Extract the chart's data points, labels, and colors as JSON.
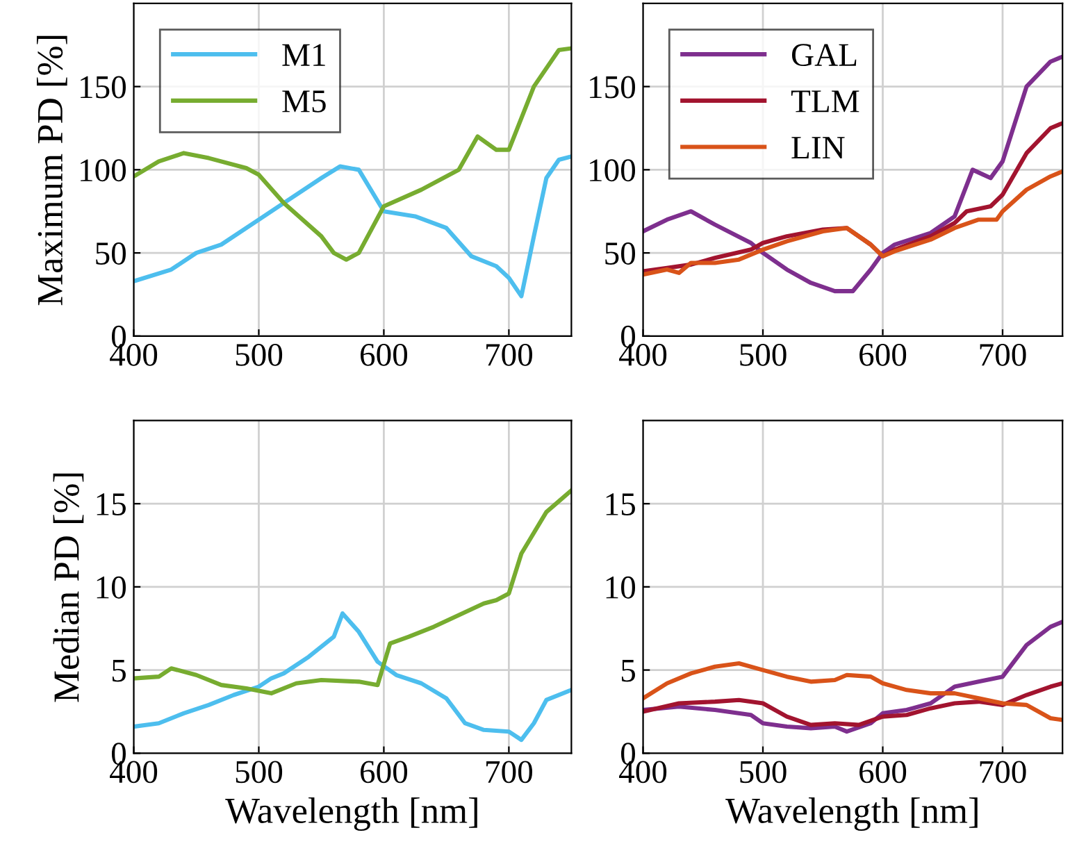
{
  "chart_data": [
    {
      "type": "line",
      "ylabel": "Maximum PD [%]",
      "xlim": [
        400,
        750
      ],
      "xticks": [
        400,
        500,
        600,
        700
      ],
      "ylim": [
        0,
        200
      ],
      "yticks": [
        0,
        50,
        100,
        150
      ],
      "grid": true,
      "legend": "top left",
      "series": [
        {
          "name": "M1",
          "color": "#4dbeee",
          "x": [
            400,
            430,
            450,
            470,
            500,
            520,
            550,
            565,
            580,
            600,
            625,
            650,
            670,
            690,
            700,
            710,
            720,
            730,
            740,
            750
          ],
          "values": [
            33,
            40,
            50,
            55,
            70,
            80,
            95,
            102,
            100,
            75,
            72,
            65,
            48,
            42,
            35,
            24,
            60,
            95,
            106,
            108
          ]
        },
        {
          "name": "M5",
          "color": "#77ac30",
          "x": [
            400,
            420,
            440,
            460,
            490,
            500,
            520,
            550,
            560,
            570,
            580,
            600,
            630,
            660,
            675,
            690,
            700,
            720,
            740,
            750
          ],
          "values": [
            96,
            105,
            110,
            107,
            101,
            97,
            80,
            60,
            50,
            46,
            50,
            78,
            88,
            100,
            120,
            112,
            112,
            150,
            172,
            173
          ]
        }
      ]
    },
    {
      "type": "line",
      "xlim": [
        400,
        750
      ],
      "xticks": [
        400,
        500,
        600,
        700
      ],
      "ylim": [
        0,
        200
      ],
      "yticks": [
        0,
        50,
        100,
        150
      ],
      "grid": true,
      "legend": "top left",
      "series": [
        {
          "name": "GAL",
          "color": "#7e2f8e",
          "x": [
            400,
            420,
            440,
            460,
            490,
            500,
            520,
            540,
            560,
            575,
            590,
            600,
            610,
            640,
            660,
            675,
            690,
            700,
            720,
            740,
            750
          ],
          "values": [
            63,
            70,
            75,
            67,
            56,
            50,
            40,
            32,
            27,
            27,
            40,
            50,
            55,
            62,
            72,
            100,
            95,
            105,
            150,
            165,
            168
          ]
        },
        {
          "name": "TLM",
          "color": "#a2142f",
          "x": [
            400,
            420,
            440,
            460,
            490,
            500,
            520,
            550,
            570,
            590,
            600,
            610,
            640,
            660,
            670,
            690,
            700,
            720,
            740,
            750
          ],
          "values": [
            39,
            41,
            43,
            47,
            52,
            56,
            60,
            64,
            65,
            55,
            48,
            52,
            60,
            68,
            75,
            78,
            85,
            110,
            125,
            128
          ]
        },
        {
          "name": "LIN",
          "color": "#d95319",
          "x": [
            400,
            420,
            430,
            440,
            460,
            480,
            500,
            520,
            550,
            570,
            590,
            600,
            610,
            640,
            660,
            680,
            695,
            700,
            720,
            740,
            750
          ],
          "values": [
            37,
            40,
            38,
            44,
            44,
            46,
            52,
            57,
            63,
            65,
            55,
            48,
            51,
            58,
            65,
            70,
            70,
            75,
            88,
            96,
            99
          ]
        }
      ]
    },
    {
      "type": "line",
      "ylabel": "Median PD [%]",
      "xlabel": "Wavelength [nm]",
      "xlim": [
        400,
        750
      ],
      "xticks": [
        400,
        500,
        600,
        700
      ],
      "ylim": [
        0,
        20
      ],
      "yticks": [
        0,
        5,
        10,
        15
      ],
      "grid": true,
      "series": [
        {
          "color": "#4dbeee",
          "x": [
            400,
            420,
            440,
            460,
            480,
            500,
            510,
            520,
            540,
            560,
            567,
            580,
            595,
            610,
            630,
            650,
            665,
            680,
            700,
            710,
            720,
            730,
            750
          ],
          "values": [
            1.6,
            1.8,
            2.4,
            2.9,
            3.5,
            4.0,
            4.5,
            4.8,
            5.8,
            7.0,
            8.4,
            7.3,
            5.5,
            4.7,
            4.2,
            3.3,
            1.8,
            1.4,
            1.3,
            0.8,
            1.8,
            3.2,
            3.8
          ]
        },
        {
          "color": "#77ac30",
          "x": [
            400,
            420,
            430,
            450,
            470,
            490,
            510,
            530,
            550,
            580,
            595,
            605,
            620,
            640,
            660,
            680,
            690,
            700,
            710,
            730,
            750
          ],
          "values": [
            4.5,
            4.6,
            5.1,
            4.7,
            4.1,
            3.9,
            3.6,
            4.2,
            4.4,
            4.3,
            4.1,
            6.6,
            7.0,
            7.6,
            8.3,
            9.0,
            9.2,
            9.6,
            12,
            14.5,
            15.8
          ]
        }
      ]
    },
    {
      "type": "line",
      "xlabel": "Wavelength [nm]",
      "xlim": [
        400,
        750
      ],
      "xticks": [
        400,
        500,
        600,
        700
      ],
      "ylim": [
        0,
        20
      ],
      "yticks": [
        0,
        5,
        10,
        15
      ],
      "grid": true,
      "series": [
        {
          "color": "#7e2f8e",
          "x": [
            400,
            430,
            460,
            490,
            500,
            520,
            540,
            560,
            570,
            590,
            600,
            620,
            640,
            660,
            680,
            700,
            720,
            740,
            750
          ],
          "values": [
            2.6,
            2.8,
            2.6,
            2.3,
            1.8,
            1.6,
            1.5,
            1.6,
            1.3,
            1.8,
            2.4,
            2.6,
            3.0,
            4.0,
            4.3,
            4.6,
            6.5,
            7.6,
            7.9
          ]
        },
        {
          "color": "#a2142f",
          "x": [
            400,
            430,
            460,
            480,
            500,
            520,
            540,
            560,
            580,
            600,
            620,
            640,
            660,
            680,
            700,
            720,
            740,
            750
          ],
          "values": [
            2.5,
            3.0,
            3.1,
            3.2,
            3.0,
            2.2,
            1.7,
            1.8,
            1.7,
            2.2,
            2.3,
            2.7,
            3.0,
            3.1,
            2.9,
            3.5,
            4.0,
            4.2
          ]
        },
        {
          "color": "#d95319",
          "x": [
            400,
            420,
            440,
            460,
            480,
            500,
            520,
            540,
            560,
            570,
            590,
            600,
            620,
            640,
            660,
            680,
            700,
            720,
            740,
            750
          ],
          "values": [
            3.3,
            4.2,
            4.8,
            5.2,
            5.4,
            5.0,
            4.6,
            4.3,
            4.4,
            4.7,
            4.6,
            4.2,
            3.8,
            3.6,
            3.6,
            3.3,
            3.0,
            2.9,
            2.1,
            2.0
          ]
        }
      ]
    }
  ]
}
